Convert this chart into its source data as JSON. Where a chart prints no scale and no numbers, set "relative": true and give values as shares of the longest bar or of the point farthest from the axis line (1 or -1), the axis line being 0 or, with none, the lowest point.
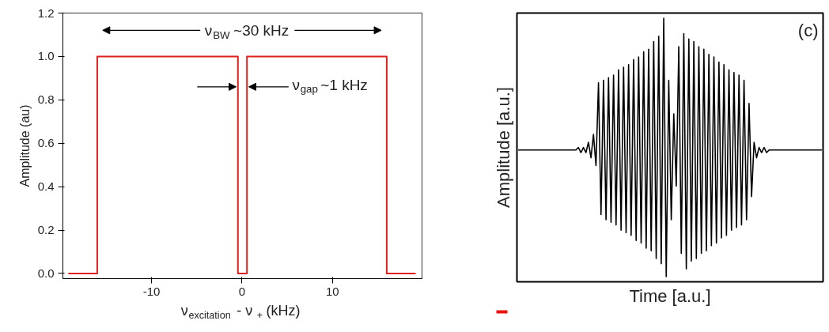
{
  "chart_data": [
    {
      "type": "line",
      "xlabel": "ν$_{excitation}$ - ν$_{+}$ (kHz)",
      "ylabel": "Amplitude (au)",
      "series": [
        {
          "color": "#e0201b",
          "x": [
            -19.2,
            -16,
            -16,
            -0.45,
            -0.45,
            0.55,
            0.55,
            16,
            16,
            19.2
          ],
          "values": [
            0,
            0,
            1,
            1,
            0,
            0,
            1,
            1,
            0,
            0
          ]
        }
      ],
      "xlim": [
        -19.8,
        19.9
      ],
      "xticks": [
        -10,
        0,
        10
      ],
      "ylim": [
        -0.024,
        1.2
      ],
      "yticks": [
        {
          "value": 0,
          "label": "0.0"
        },
        {
          "value": 0.2,
          "label": "0.2"
        },
        {
          "value": 0.4,
          "label": "0.4"
        },
        {
          "value": 0.6,
          "label": "0.6"
        },
        {
          "value": 0.8,
          "label": "0.8"
        },
        {
          "value": 1.0,
          "label": "1.0"
        },
        {
          "value": 1.2,
          "label": "1.2"
        }
      ],
      "annotations": [
        "ν$_{BW}$~30 kHz",
        {
          "text": "ν$_{gap}$~1 kHz",
          "x": 0.55,
          "y": 0.87
        }
      ],
      "grid": false,
      "marker": "none",
      "line_style": "solid"
    },
    {
      "type": "line",
      "relative": true,
      "xlabel": "Time [a.u.]",
      "ylabel": "Amplitude [a.u.]",
      "annotations": [
        "(c)"
      ],
      "categories": [
        null,
        null,
        null,
        null,
        null,
        null,
        null,
        null,
        null,
        null,
        null,
        null,
        null,
        null,
        null,
        null,
        null,
        null,
        null,
        null,
        null,
        null,
        null,
        null,
        null,
        null,
        null,
        null,
        null,
        null,
        null,
        null,
        null,
        null,
        null,
        null,
        null,
        null,
        null,
        null,
        null,
        null,
        null,
        null,
        null,
        null,
        null,
        null,
        null,
        null,
        null,
        null,
        null,
        null,
        null,
        null,
        null,
        null,
        null,
        null,
        null,
        null,
        null,
        null,
        null,
        null,
        null,
        null,
        null,
        null,
        null,
        null,
        null,
        null,
        null,
        null,
        null,
        null,
        null,
        null,
        null,
        null,
        null,
        null,
        null,
        null,
        null,
        null,
        null,
        null,
        null,
        null,
        null,
        null,
        null,
        null,
        null,
        null,
        null,
        null,
        null,
        null,
        null,
        null,
        null,
        null,
        null,
        null,
        null,
        null,
        null,
        null,
        null,
        null,
        null,
        null,
        null,
        null,
        null,
        null,
        null,
        null
      ],
      "series": [
        {
          "color": "#000000",
          "values": [
            0.49,
            0.49,
            0.49,
            0.49,
            0.49,
            0.49,
            0.49,
            0.49,
            0.49,
            0.49,
            0.49,
            0.49,
            0.49,
            0.49,
            0.49,
            0.49,
            0.49,
            0.49,
            0.49,
            0.49,
            0.49,
            0.49,
            0.49,
            0.49,
            0.5,
            0.48,
            0.5,
            0.48,
            0.52,
            0.46,
            0.55,
            0.43,
            0.75,
            0.24,
            0.76,
            0.22,
            0.77,
            0.21,
            0.78,
            0.2,
            0.8,
            0.18,
            0.81,
            0.17,
            0.82,
            0.16,
            0.84,
            0.14,
            0.85,
            0.13,
            0.87,
            0.11,
            0.88,
            0.1,
            0.91,
            0.07,
            0.93,
            0.05,
            1.0,
            0,
            0.76,
            0.22,
            0.63,
            0.35,
            0.89,
            0.09,
            0.94,
            0.03,
            0.92,
            0.06,
            0.91,
            0.07,
            0.89,
            0.09,
            0.88,
            0.1,
            0.86,
            0.12,
            0.85,
            0.13,
            0.83,
            0.15,
            0.82,
            0.16,
            0.8,
            0.18,
            0.79,
            0.19,
            0.78,
            0.2,
            0.76,
            0.22,
            0.67,
            0.31,
            0.52,
            0.46,
            0.5,
            0.48,
            0.5,
            0.48,
            0.49,
            0.49,
            0.49,
            0.49,
            0.49,
            0.49,
            0.49,
            0.49,
            0.49,
            0.49,
            0.49,
            0.49,
            0.49,
            0.49,
            0.49,
            0.49,
            0.49,
            0.49,
            0.49,
            0.49,
            0.49,
            0.49
          ]
        }
      ],
      "grid": false,
      "line_style": "solid"
    }
  ]
}
